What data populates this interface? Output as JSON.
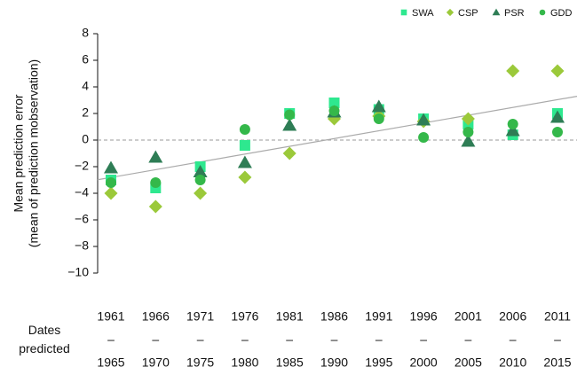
{
  "chart_data": {
    "type": "scatter",
    "ylabel": [
      "Mean prediction error",
      "(mean of prediction mobservation)"
    ],
    "xlabel": "Dates predicted",
    "categories": [
      [
        "1961",
        "–",
        "1965"
      ],
      [
        "1966",
        "–",
        "1970"
      ],
      [
        "1971",
        "–",
        "1975"
      ],
      [
        "1976",
        "–",
        "1980"
      ],
      [
        "1981",
        "–",
        "1985"
      ],
      [
        "1986",
        "–",
        "1990"
      ],
      [
        "1991",
        "–",
        "1995"
      ],
      [
        "1996",
        "–",
        "2000"
      ],
      [
        "2001",
        "–",
        "2005"
      ],
      [
        "2006",
        "–",
        "2010"
      ],
      [
        "2011",
        "–",
        "2015"
      ]
    ],
    "series": [
      {
        "name": "SWA",
        "marker": "square",
        "color": "#2ee88f",
        "values": [
          -3.0,
          -3.6,
          -2.0,
          -0.4,
          2.0,
          2.8,
          2.3,
          1.6,
          1.2,
          0.4,
          2.0
        ]
      },
      {
        "name": "CSP",
        "marker": "diamond",
        "color": "#9bc93a",
        "values": [
          -4.0,
          -5.0,
          -4.0,
          -2.8,
          -1.0,
          1.6,
          1.8,
          1.4,
          1.6,
          5.2,
          5.2
        ]
      },
      {
        "name": "PSR",
        "marker": "triangle",
        "color": "#2e7d55",
        "values": [
          -2.1,
          -1.3,
          -2.4,
          -1.7,
          1.1,
          2.1,
          2.5,
          1.5,
          -0.1,
          0.7,
          1.7
        ]
      },
      {
        "name": "GDD",
        "marker": "circle",
        "color": "#34b84a",
        "values": [
          -3.2,
          -3.2,
          -3.0,
          0.8,
          1.9,
          2.2,
          1.6,
          0.2,
          0.6,
          1.2,
          0.6
        ]
      }
    ],
    "ylim": [
      -10,
      8
    ],
    "yticks": [
      {
        "value": -10,
        "label": "−10"
      },
      {
        "value": -8,
        "label": "−8"
      },
      {
        "value": -6,
        "label": "−6"
      },
      {
        "value": -4,
        "label": "−4"
      },
      {
        "value": -2,
        "label": "−2"
      },
      0,
      2,
      4,
      6,
      8
    ],
    "trend_line": true,
    "zero_line": true,
    "legend": "top-right"
  }
}
